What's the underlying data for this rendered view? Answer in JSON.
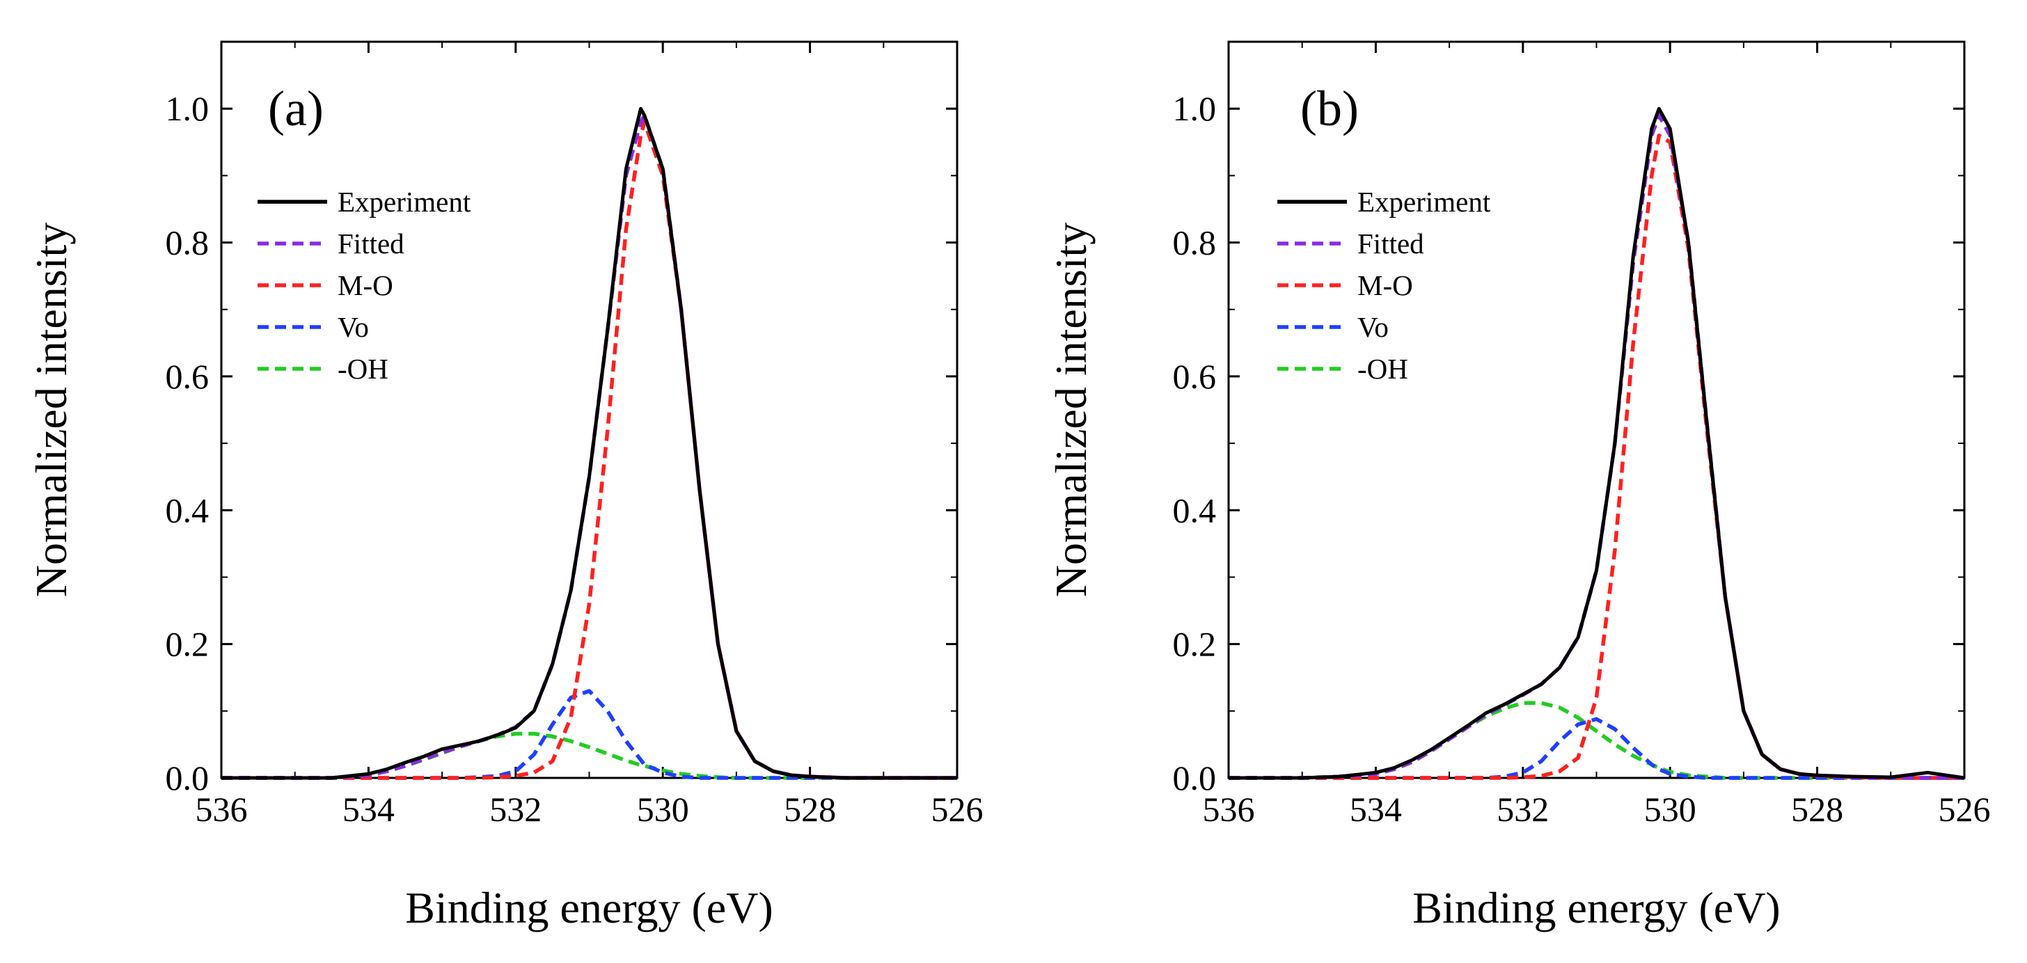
{
  "chart_data": [
    {
      "type": "line",
      "panel_label": "(a)",
      "xlabel": "Binding energy (eV)",
      "ylabel": "Normalized intensity",
      "xlim": [
        536,
        526
      ],
      "ylim": [
        0,
        1.1
      ],
      "x_ticks": [
        536,
        534,
        532,
        530,
        528,
        526
      ],
      "y_ticks": [
        0.0,
        0.2,
        0.4,
        0.6,
        0.8,
        1.0
      ],
      "x_tick_labels": [
        "536",
        "534",
        "532",
        "530",
        "528",
        "526"
      ],
      "y_tick_labels": [
        "0.0",
        "0.2",
        "0.4",
        "0.6",
        "0.8",
        "1.0"
      ],
      "grid": false,
      "legend_position": "upper-left",
      "x": [
        536,
        535.5,
        535,
        534.5,
        534,
        533.75,
        533.5,
        533.25,
        533,
        532.75,
        532.5,
        532.25,
        532,
        531.75,
        531.5,
        531.25,
        531,
        530.75,
        530.5,
        530.3,
        530.25,
        530,
        529.75,
        529.5,
        529.25,
        529,
        528.75,
        528.5,
        528.25,
        528,
        527.5,
        527,
        526.5,
        526
      ],
      "series": [
        {
          "name": "Experiment",
          "color": "#000000",
          "dash": "solid",
          "values": [
            0.0,
            0.0,
            0.0,
            0.0,
            0.006,
            0.013,
            0.023,
            0.032,
            0.043,
            0.049,
            0.055,
            0.064,
            0.075,
            0.1,
            0.17,
            0.28,
            0.45,
            0.67,
            0.91,
            1.0,
            0.99,
            0.91,
            0.7,
            0.43,
            0.2,
            0.07,
            0.025,
            0.01,
            0.004,
            0.002,
            0.0,
            0.0,
            0.0,
            0.0
          ]
        },
        {
          "name": "Fitted",
          "color": "#8a2be2",
          "dash": "dash",
          "values": [
            0.0,
            0.0,
            0.0,
            0.0,
            0.004,
            0.01,
            0.018,
            0.028,
            0.038,
            0.047,
            0.055,
            0.064,
            0.076,
            0.1,
            0.17,
            0.28,
            0.45,
            0.67,
            0.9,
            0.98,
            0.99,
            0.91,
            0.7,
            0.43,
            0.2,
            0.07,
            0.025,
            0.01,
            0.004,
            0.002,
            0.0,
            0.0,
            0.0,
            0.0
          ]
        },
        {
          "name": "M-O",
          "color": "#ff2020",
          "dash": "dash",
          "values": [
            0.0,
            0.0,
            0.0,
            0.0,
            0.0,
            0.0,
            0.0,
            0.0,
            0.0,
            0.0,
            0.0,
            0.001,
            0.003,
            0.008,
            0.025,
            0.09,
            0.26,
            0.52,
            0.82,
            0.96,
            0.98,
            0.9,
            0.7,
            0.43,
            0.2,
            0.07,
            0.025,
            0.01,
            0.004,
            0.002,
            0.0,
            0.0,
            0.0,
            0.0
          ]
        },
        {
          "name": "Vo",
          "color": "#1f3fff",
          "dash": "dash",
          "values": [
            0.0,
            0.0,
            0.0,
            0.0,
            0.0,
            0.0,
            0.0,
            0.0,
            0.0,
            0.0,
            0.001,
            0.003,
            0.01,
            0.035,
            0.08,
            0.12,
            0.13,
            0.1,
            0.055,
            0.027,
            0.02,
            0.008,
            0.002,
            0.0,
            0.0,
            0.0,
            0.0,
            0.0,
            0.0,
            0.0,
            0.0,
            0.0,
            0.0,
            0.0
          ]
        },
        {
          "name": "-OH",
          "color": "#22cc22",
          "dash": "dash",
          "values": [
            0.0,
            0.0,
            0.0,
            0.0,
            0.004,
            0.01,
            0.018,
            0.027,
            0.037,
            0.047,
            0.055,
            0.062,
            0.066,
            0.066,
            0.062,
            0.055,
            0.046,
            0.036,
            0.026,
            0.019,
            0.018,
            0.011,
            0.006,
            0.003,
            0.001,
            0.0,
            0.0,
            0.0,
            0.0,
            0.0,
            0.0,
            0.0,
            0.0,
            0.0
          ]
        }
      ]
    },
    {
      "type": "line",
      "panel_label": "(b)",
      "xlabel": "Binding energy (eV)",
      "ylabel": "Normalized intensity",
      "xlim": [
        536,
        526
      ],
      "ylim": [
        0,
        1.1
      ],
      "x_ticks": [
        536,
        534,
        532,
        530,
        528,
        526
      ],
      "y_ticks": [
        0.0,
        0.2,
        0.4,
        0.6,
        0.8,
        1.0
      ],
      "x_tick_labels": [
        "536",
        "534",
        "532",
        "530",
        "528",
        "526"
      ],
      "y_tick_labels": [
        "0.0",
        "0.2",
        "0.4",
        "0.6",
        "0.8",
        "1.0"
      ],
      "grid": false,
      "legend_position": "upper-left",
      "x": [
        536,
        535.5,
        535,
        534.5,
        534,
        533.75,
        533.5,
        533.25,
        533,
        532.75,
        532.5,
        532.25,
        532,
        531.75,
        531.5,
        531.25,
        531,
        530.75,
        530.5,
        530.25,
        530.15,
        530,
        529.75,
        529.5,
        529.25,
        529,
        528.75,
        528.5,
        528.25,
        528,
        527.5,
        527,
        526.5,
        526
      ],
      "series": [
        {
          "name": "Experiment",
          "color": "#000000",
          "dash": "solid",
          "values": [
            0.0,
            0.0,
            0.0,
            0.002,
            0.008,
            0.015,
            0.027,
            0.042,
            0.06,
            0.078,
            0.097,
            0.11,
            0.125,
            0.14,
            0.165,
            0.21,
            0.31,
            0.5,
            0.78,
            0.97,
            1.0,
            0.97,
            0.8,
            0.53,
            0.27,
            0.1,
            0.035,
            0.013,
            0.006,
            0.004,
            0.002,
            0.001,
            0.008,
            0.0
          ]
        },
        {
          "name": "Fitted",
          "color": "#8a2be2",
          "dash": "dash",
          "values": [
            0.0,
            0.0,
            0.0,
            0.002,
            0.006,
            0.013,
            0.024,
            0.04,
            0.058,
            0.076,
            0.095,
            0.109,
            0.124,
            0.14,
            0.165,
            0.21,
            0.31,
            0.5,
            0.77,
            0.96,
            0.99,
            0.96,
            0.8,
            0.53,
            0.27,
            0.1,
            0.035,
            0.013,
            0.006,
            0.003,
            0.001,
            0.0,
            0.0,
            0.0
          ]
        },
        {
          "name": "M-O",
          "color": "#ff2020",
          "dash": "dash",
          "values": [
            0.0,
            0.0,
            0.0,
            0.0,
            0.0,
            0.0,
            0.0,
            0.0,
            0.0,
            0.0,
            0.0,
            0.0,
            0.001,
            0.003,
            0.01,
            0.03,
            0.12,
            0.34,
            0.65,
            0.9,
            0.96,
            0.95,
            0.79,
            0.52,
            0.27,
            0.1,
            0.035,
            0.013,
            0.006,
            0.003,
            0.001,
            0.0,
            0.0,
            0.0
          ]
        },
        {
          "name": "Vo",
          "color": "#1f3fff",
          "dash": "dash",
          "values": [
            0.0,
            0.0,
            0.0,
            0.0,
            0.0,
            0.0,
            0.0,
            0.0,
            0.0,
            0.0,
            0.0,
            0.002,
            0.008,
            0.025,
            0.055,
            0.08,
            0.088,
            0.073,
            0.045,
            0.02,
            0.013,
            0.006,
            0.002,
            0.0,
            0.0,
            0.0,
            0.0,
            0.0,
            0.0,
            0.0,
            0.0,
            0.0,
            0.0,
            0.0
          ]
        },
        {
          "name": "-OH",
          "color": "#22cc22",
          "dash": "dash",
          "values": [
            0.0,
            0.0,
            0.0,
            0.002,
            0.006,
            0.013,
            0.024,
            0.04,
            0.058,
            0.076,
            0.092,
            0.104,
            0.112,
            0.112,
            0.105,
            0.09,
            0.07,
            0.05,
            0.033,
            0.02,
            0.015,
            0.009,
            0.004,
            0.002,
            0.0,
            0.0,
            0.0,
            0.0,
            0.0,
            0.0,
            0.0,
            0.0,
            0.0,
            0.0
          ]
        }
      ]
    }
  ]
}
